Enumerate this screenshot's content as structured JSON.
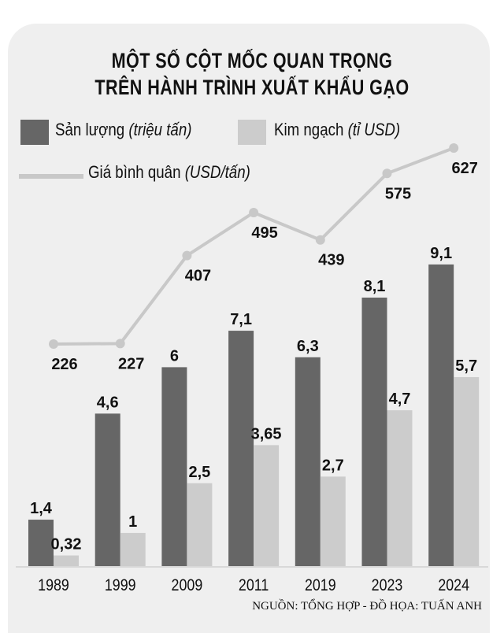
{
  "chart_data": {
    "type": "bar",
    "title": [
      "MỘT SỐ CỘT MỐC QUAN TRỌNG",
      "TRÊN HÀNH TRÌNH XUẤT KHẨU GẠO"
    ],
    "categories": [
      "1989",
      "1999",
      "2009",
      "2011",
      "2019",
      "2023",
      "2024"
    ],
    "series": [
      {
        "name": "Sản lượng",
        "unit": "(triệu tấn)",
        "kind": "bar",
        "color": "#666666",
        "values": [
          1.4,
          4.6,
          6,
          7.1,
          6.3,
          8.1,
          9.1
        ],
        "labels": [
          "1,4",
          "4,6",
          "6",
          "7,1",
          "6,3",
          "8,1",
          "9,1"
        ]
      },
      {
        "name": "Kim ngạch",
        "unit": "(tỉ USD)",
        "kind": "bar",
        "color": "#cccccc",
        "values": [
          0.32,
          1,
          2.5,
          3.65,
          2.7,
          4.7,
          5.7
        ],
        "labels": [
          "0,32",
          "1",
          "2,5",
          "3,65",
          "2,7",
          "4,7",
          "5,7"
        ]
      },
      {
        "name": "Giá bình quân",
        "unit": "(USD/tấn)",
        "kind": "line",
        "color": "#c8c8c8",
        "values": [
          226,
          227,
          407,
          495,
          439,
          575,
          627
        ],
        "labels": [
          "226",
          "227",
          "407",
          "495",
          "439",
          "575",
          "627"
        ]
      }
    ],
    "grid": false,
    "legend": "top-left"
  },
  "source": "NGUỒN: TỔNG HỢP - ĐỒ HỌA: TUẤN ANH"
}
